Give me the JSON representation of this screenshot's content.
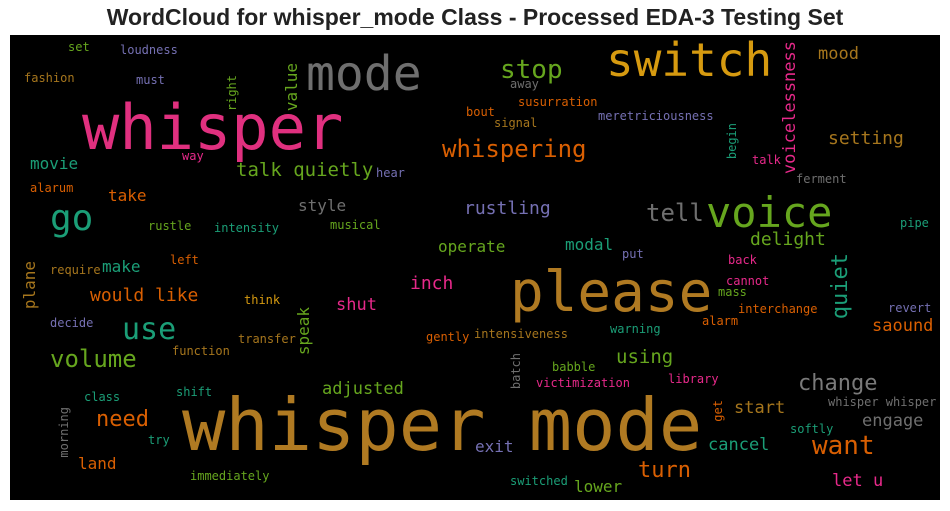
{
  "chart_data": {
    "type": "wordcloud",
    "title": "WordCloud for whisper_mode Class - Processed EDA-3 Testing Set",
    "background": "#000000",
    "words": [
      {
        "text": "whisper mode",
        "color": "#b07a22"
      },
      {
        "text": "please",
        "color": "#b07a22"
      },
      {
        "text": "whisper",
        "color": "#e0307f"
      },
      {
        "text": "mode",
        "color": "#6f6f6f"
      },
      {
        "text": "switch",
        "color": "#d69a10"
      },
      {
        "text": "voice",
        "color": "#66a61e"
      },
      {
        "text": "go",
        "color": "#1b9e77"
      },
      {
        "text": "stop",
        "color": "#66a61e"
      },
      {
        "text": "use",
        "color": "#1b9e77"
      },
      {
        "text": "volume",
        "color": "#66a61e"
      },
      {
        "text": "want",
        "color": "#d95f02"
      },
      {
        "text": "change",
        "color": "#7a7a7a"
      },
      {
        "text": "whispering",
        "color": "#d95f02"
      },
      {
        "text": "tell",
        "color": "#6f6f6f"
      },
      {
        "text": "turn",
        "color": "#d95f02"
      },
      {
        "text": "need",
        "color": "#d95f02"
      },
      {
        "text": "quiet",
        "color": "#1b9e77"
      },
      {
        "text": "voicelessness",
        "color": "#e7298a"
      },
      {
        "text": "talk quietly",
        "color": "#66a61e"
      },
      {
        "text": "rustling",
        "color": "#7570b3"
      },
      {
        "text": "setting",
        "color": "#a6761d"
      },
      {
        "text": "delight",
        "color": "#66a61e"
      },
      {
        "text": "would like",
        "color": "#d95f02"
      },
      {
        "text": "using",
        "color": "#66a61e"
      },
      {
        "text": "inch",
        "color": "#e7298a"
      },
      {
        "text": "shut",
        "color": "#e7298a"
      },
      {
        "text": "adjusted",
        "color": "#66a61e"
      },
      {
        "text": "mood",
        "color": "#a6761d"
      },
      {
        "text": "start",
        "color": "#a6761d"
      },
      {
        "text": "engage",
        "color": "#6f6f6f"
      },
      {
        "text": "saound",
        "color": "#d95f02"
      },
      {
        "text": "cancel",
        "color": "#1b9e77"
      },
      {
        "text": "let u",
        "color": "#e7298a"
      },
      {
        "text": "movie",
        "color": "#1b9e77"
      },
      {
        "text": "make",
        "color": "#1b9e77"
      },
      {
        "text": "take",
        "color": "#d95f02"
      },
      {
        "text": "operate",
        "color": "#66a61e"
      },
      {
        "text": "modal",
        "color": "#1b9e77"
      },
      {
        "text": "style",
        "color": "#6f6f6f"
      },
      {
        "text": "value",
        "color": "#66a61e"
      },
      {
        "text": "speak",
        "color": "#66a61e"
      },
      {
        "text": "exit",
        "color": "#7570b3"
      },
      {
        "text": "lower",
        "color": "#66a61e"
      },
      {
        "text": "land",
        "color": "#d95f02"
      },
      {
        "text": "plane",
        "color": "#a6761d"
      },
      {
        "text": "set",
        "color": "#66a61e"
      },
      {
        "text": "loudness",
        "color": "#7570b3"
      },
      {
        "text": "fashion",
        "color": "#a6761d"
      },
      {
        "text": "must",
        "color": "#7570b3"
      },
      {
        "text": "right",
        "color": "#66a61e"
      },
      {
        "text": "away",
        "color": "#6f6f6f"
      },
      {
        "text": "susurration",
        "color": "#d95f02"
      },
      {
        "text": "bout",
        "color": "#d95f02"
      },
      {
        "text": "signal",
        "color": "#a6761d"
      },
      {
        "text": "meretriciousness",
        "color": "#7570b3"
      },
      {
        "text": "begin",
        "color": "#1b9e77"
      },
      {
        "text": "talk",
        "color": "#e7298a"
      },
      {
        "text": "ferment",
        "color": "#6f6f6f"
      },
      {
        "text": "way",
        "color": "#e7298a"
      },
      {
        "text": "hear",
        "color": "#7570b3"
      },
      {
        "text": "alarum",
        "color": "#d95f02"
      },
      {
        "text": "rustle",
        "color": "#66a61e"
      },
      {
        "text": "intensity",
        "color": "#1b9e77"
      },
      {
        "text": "musical",
        "color": "#66a61e"
      },
      {
        "text": "pipe",
        "color": "#1b9e77"
      },
      {
        "text": "require",
        "color": "#a6761d"
      },
      {
        "text": "left",
        "color": "#d95f02"
      },
      {
        "text": "put",
        "color": "#7570b3"
      },
      {
        "text": "back",
        "color": "#e7298a"
      },
      {
        "text": "cannot",
        "color": "#e7298a"
      },
      {
        "text": "mass",
        "color": "#66a61e"
      },
      {
        "text": "think",
        "color": "#d69a10"
      },
      {
        "text": "interchange",
        "color": "#d95f02"
      },
      {
        "text": "revert",
        "color": "#7570b3"
      },
      {
        "text": "alarm",
        "color": "#d95f02"
      },
      {
        "text": "decide",
        "color": "#7570b3"
      },
      {
        "text": "transfer",
        "color": "#a6761d"
      },
      {
        "text": "gently",
        "color": "#d95f02"
      },
      {
        "text": "intensiveness",
        "color": "#a6761d"
      },
      {
        "text": "warning",
        "color": "#1b9e77"
      },
      {
        "text": "function",
        "color": "#a6761d"
      },
      {
        "text": "batch",
        "color": "#6f6f6f"
      },
      {
        "text": "babble",
        "color": "#66a61e"
      },
      {
        "text": "victimization",
        "color": "#e7298a"
      },
      {
        "text": "library",
        "color": "#e7298a"
      },
      {
        "text": "class",
        "color": "#1b9e77"
      },
      {
        "text": "shift",
        "color": "#1b9e77"
      },
      {
        "text": "get",
        "color": "#d95f02"
      },
      {
        "text": "whisper whisper",
        "color": "#6f6f6f"
      },
      {
        "text": "softly",
        "color": "#1b9e77"
      },
      {
        "text": "morning",
        "color": "#6f6f6f"
      },
      {
        "text": "try",
        "color": "#1b9e77"
      },
      {
        "text": "immediately",
        "color": "#66a61e"
      },
      {
        "text": "switched",
        "color": "#1b9e77"
      }
    ]
  }
}
